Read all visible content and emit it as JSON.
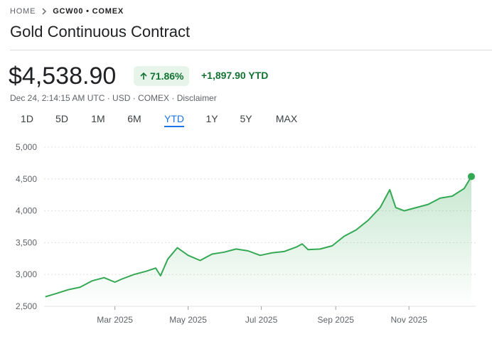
{
  "breadcrumb": {
    "home": "HOME",
    "ticker": "GCW00 • COMEX"
  },
  "title": "Gold Continuous Contract",
  "price": "$4,538.90",
  "change_pct": "71.86%",
  "change_ytd": "+1,897.90 YTD",
  "meta": "Dec 24, 2:14:15 AM UTC · USD · COMEX · Disclaimer",
  "ranges": [
    "1D",
    "5D",
    "1M",
    "6M",
    "YTD",
    "1Y",
    "5Y",
    "MAX"
  ],
  "selected_range": 4,
  "chart_data": {
    "type": "line",
    "color": "#34a853",
    "x": [
      1,
      10,
      20,
      30,
      40,
      50,
      59,
      65,
      75,
      85,
      93,
      97,
      103,
      111,
      120,
      130,
      140,
      150,
      160,
      170,
      180,
      190,
      200,
      210,
      215,
      220,
      230,
      240,
      250,
      260,
      270,
      280,
      288,
      293,
      300,
      310,
      320,
      330,
      340,
      350,
      356
    ],
    "values": [
      2650,
      2700,
      2760,
      2800,
      2900,
      2950,
      2880,
      2930,
      3000,
      3050,
      3100,
      2980,
      3240,
      3420,
      3300,
      3220,
      3320,
      3350,
      3400,
      3370,
      3300,
      3340,
      3360,
      3430,
      3480,
      3390,
      3400,
      3450,
      3600,
      3700,
      3850,
      4050,
      4330,
      4050,
      4000,
      4050,
      4100,
      4200,
      4230,
      4350,
      4538.9
    ],
    "xlim": [
      0,
      356
    ],
    "xticks": [
      {
        "value": 59,
        "label": "Mar 2025"
      },
      {
        "value": 120,
        "label": "May 2025"
      },
      {
        "value": 181,
        "label": "Jul 2025"
      },
      {
        "value": 243,
        "label": "Sep 2025"
      },
      {
        "value": 304,
        "label": "Nov 2025"
      }
    ],
    "ylim": [
      2500,
      5000
    ],
    "yticks": [
      {
        "value": 2500,
        "label": "2,500"
      },
      {
        "value": 3000,
        "label": "3,000"
      },
      {
        "value": 3500,
        "label": "3,500"
      },
      {
        "value": 4000,
        "label": "4,000"
      },
      {
        "value": 4500,
        "label": "4,500"
      },
      {
        "value": 5000,
        "label": "5,000"
      }
    ],
    "grid": true
  }
}
